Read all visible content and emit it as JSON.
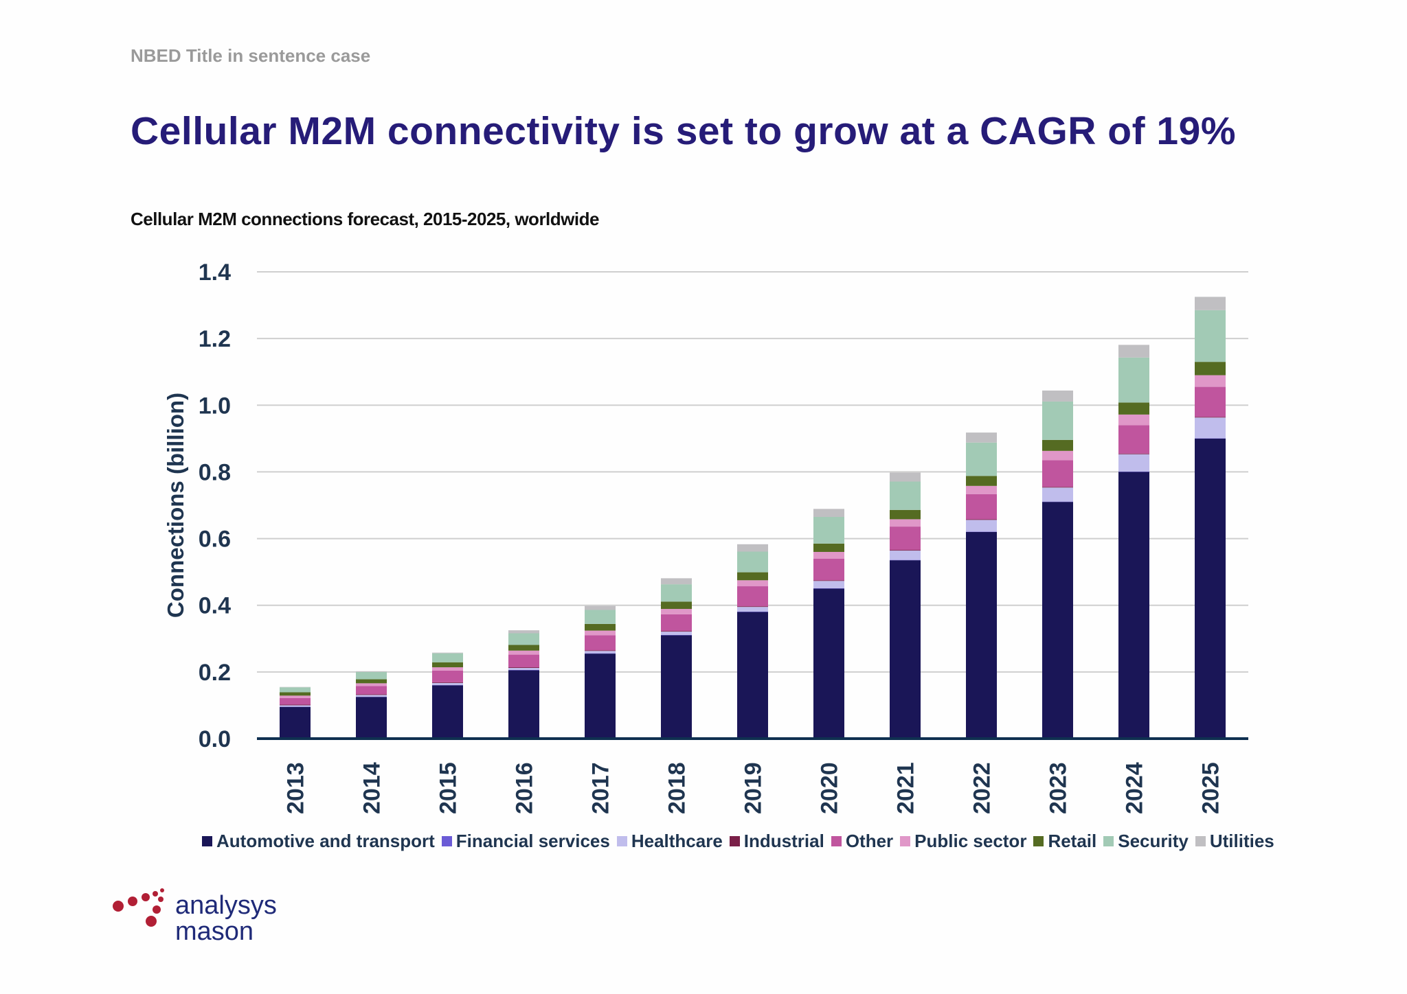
{
  "header": {
    "supertitle": "NBED Title in sentence case",
    "title": "Cellular M2M connectivity is set to grow at a CAGR of 19%"
  },
  "logo": {
    "text_line1": "analysys",
    "text_line2": "mason"
  },
  "chart_data": {
    "type": "bar",
    "stacked": true,
    "title": "Cellular M2M connections forecast, 2015-2025, worldwide",
    "xlabel": "",
    "ylabel": "Connections (billion)",
    "ylim": [
      0,
      1.4
    ],
    "yticks": [
      "0.0",
      "0.2",
      "0.4",
      "0.6",
      "0.8",
      "1.0",
      "1.2",
      "1.4"
    ],
    "grid": true,
    "legend_position": "bottom",
    "categories": [
      "2013",
      "2014",
      "2015",
      "2016",
      "2017",
      "2018",
      "2019",
      "2020",
      "2021",
      "2022",
      "2023",
      "2024",
      "2025"
    ],
    "series": [
      {
        "name": "Automotive and transport",
        "color": "#1a1657",
        "values": [
          0.095,
          0.125,
          0.16,
          0.205,
          0.255,
          0.31,
          0.38,
          0.45,
          0.535,
          0.62,
          0.71,
          0.8,
          0.9
        ]
      },
      {
        "name": "Financial services",
        "color": "#6b5bd6",
        "values": [
          0.001,
          0.001,
          0.001,
          0.001,
          0.001,
          0.001,
          0.001,
          0.001,
          0.001,
          0.001,
          0.001,
          0.001,
          0.001
        ]
      },
      {
        "name": "Healthcare",
        "color": "#c0bdec",
        "values": [
          0.004,
          0.005,
          0.006,
          0.006,
          0.007,
          0.01,
          0.014,
          0.022,
          0.028,
          0.035,
          0.042,
          0.052,
          0.062
        ]
      },
      {
        "name": "Industrial",
        "color": "#7a2048",
        "values": [
          0.002,
          0.002,
          0.002,
          0.002,
          0.002,
          0.002,
          0.002,
          0.002,
          0.002,
          0.002,
          0.002,
          0.002,
          0.002
        ]
      },
      {
        "name": "Other",
        "color": "#c0559e",
        "values": [
          0.02,
          0.025,
          0.035,
          0.038,
          0.045,
          0.05,
          0.06,
          0.065,
          0.07,
          0.075,
          0.08,
          0.085,
          0.09
        ]
      },
      {
        "name": "Public sector",
        "color": "#e097c8",
        "values": [
          0.007,
          0.008,
          0.01,
          0.012,
          0.014,
          0.016,
          0.018,
          0.02,
          0.022,
          0.025,
          0.028,
          0.032,
          0.035
        ]
      },
      {
        "name": "Retail",
        "color": "#556b22",
        "values": [
          0.01,
          0.012,
          0.015,
          0.017,
          0.02,
          0.022,
          0.024,
          0.025,
          0.028,
          0.03,
          0.033,
          0.036,
          0.04
        ]
      },
      {
        "name": "Security",
        "color": "#a2cab5",
        "values": [
          0.015,
          0.022,
          0.027,
          0.035,
          0.042,
          0.052,
          0.062,
          0.08,
          0.085,
          0.1,
          0.115,
          0.135,
          0.155
        ]
      },
      {
        "name": "Utilities",
        "color": "#c0bfc2",
        "values": [
          0.001,
          0.002,
          0.002,
          0.009,
          0.012,
          0.018,
          0.022,
          0.024,
          0.027,
          0.03,
          0.033,
          0.038,
          0.04
        ]
      }
    ]
  }
}
